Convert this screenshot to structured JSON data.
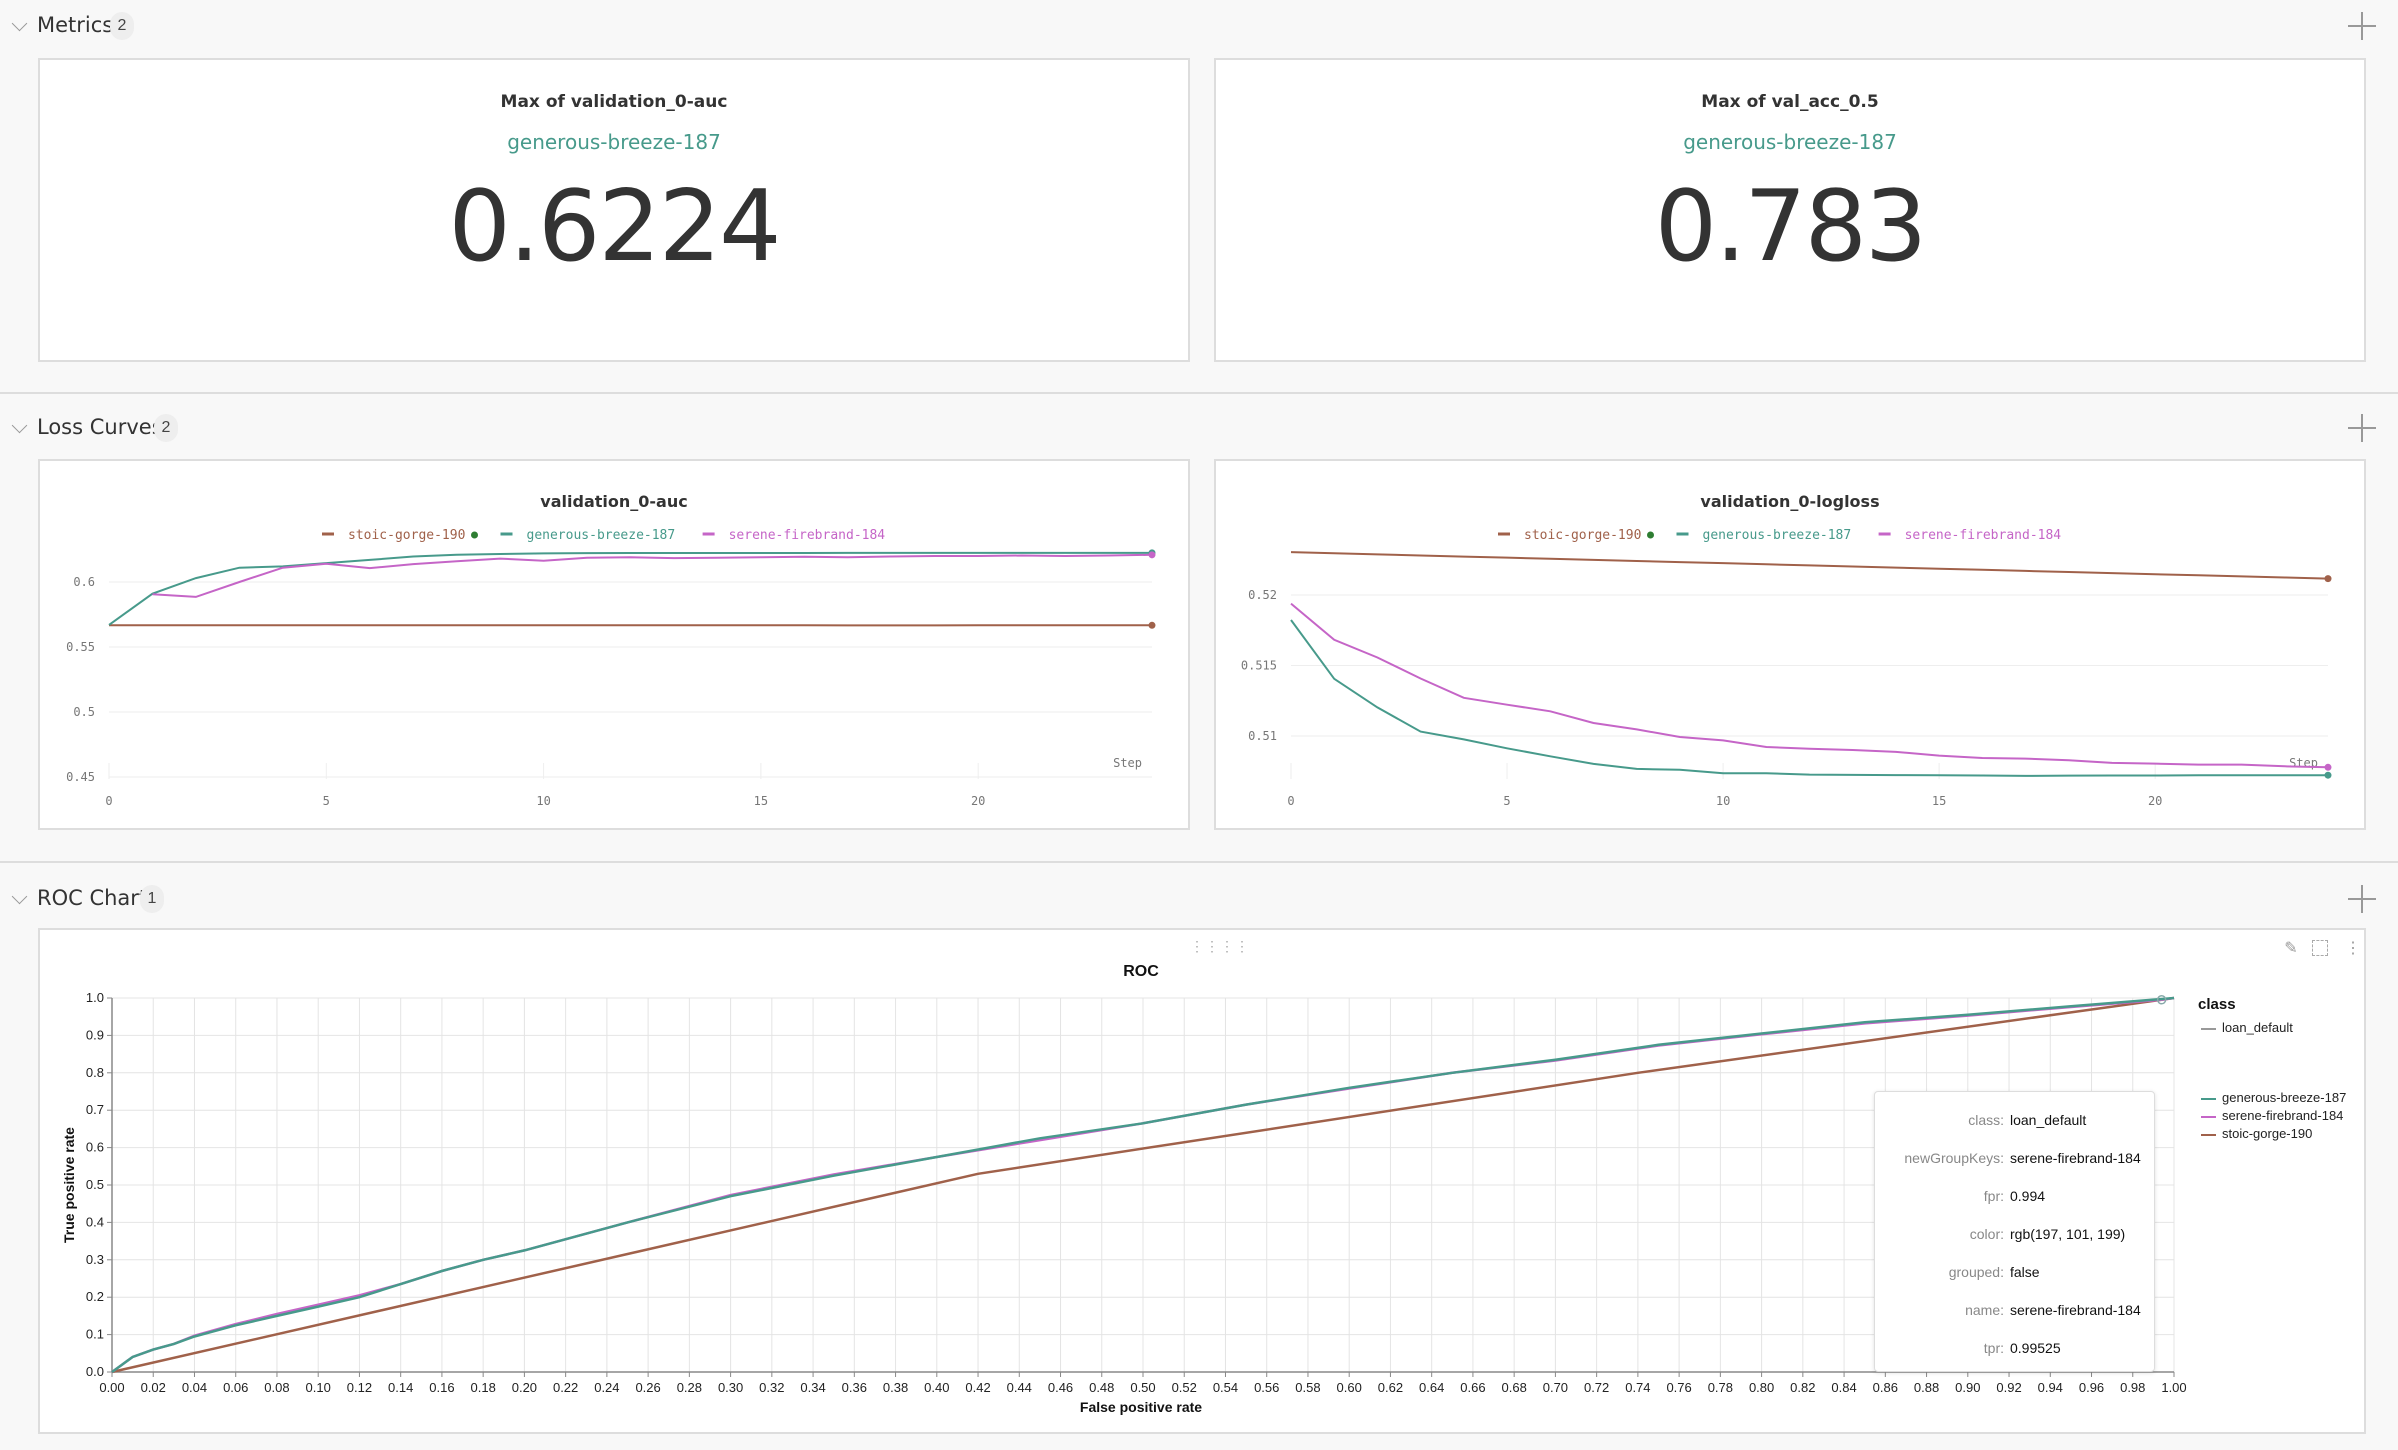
{
  "colors": {
    "generous-breeze-187": "#479a8b",
    "serene-firebrand-184": "#c565c7",
    "stoic-gorge-190": "#a0614a",
    "accent_dot": "#2e7d32",
    "loan_default": "#999999"
  },
  "sections": {
    "metrics": {
      "title": "Metrics",
      "count": "2"
    },
    "loss": {
      "title": "Loss Curves",
      "count": "2"
    },
    "roc": {
      "title": "ROC Chart",
      "count": "1"
    }
  },
  "metrics": [
    {
      "title": "Max of validation_0-auc",
      "run": "generous-breeze-187",
      "value": "0.6224"
    },
    {
      "title": "Max of val_acc_0.5",
      "run": "generous-breeze-187",
      "value": "0.783"
    }
  ],
  "chart_data": [
    {
      "type": "line",
      "title": "validation_0-auc",
      "xlabel": "Step",
      "ylabel": "",
      "x_ticks": [
        "0",
        "5",
        "10",
        "15",
        "20"
      ],
      "y_ticks": [
        "0.45",
        "0.5",
        "0.55",
        "0.6"
      ],
      "ylim": [
        0.45,
        0.6224
      ],
      "xlim": [
        0,
        24
      ],
      "grid": true,
      "legend": "top",
      "x": [
        0,
        1,
        2,
        3,
        4,
        5,
        6,
        7,
        8,
        9,
        10,
        11,
        12,
        13,
        14,
        15,
        16,
        17,
        18,
        19,
        20,
        21,
        22,
        23,
        24
      ],
      "series": [
        {
          "name": "stoic-gorge-190",
          "values": [
            0.5668,
            0.5668,
            0.5668,
            0.5668,
            0.5668,
            0.5668,
            0.5668,
            0.5668,
            0.5668,
            0.5668,
            0.5668,
            0.5668,
            0.5668,
            0.5668,
            0.5668,
            0.5668,
            0.5668,
            0.5666,
            0.5666,
            0.5666,
            0.5667,
            0.5667,
            0.5667,
            0.5667,
            0.5667
          ]
        },
        {
          "name": "generous-breeze-187",
          "values": [
            0.567,
            0.591,
            0.603,
            0.611,
            0.612,
            0.6145,
            0.617,
            0.6196,
            0.621,
            0.6215,
            0.622,
            0.6222,
            0.6223,
            0.6223,
            0.6223,
            0.6223,
            0.6223,
            0.6224,
            0.6224,
            0.6224,
            0.6224,
            0.6224,
            0.6224,
            0.6224,
            0.6224
          ]
        },
        {
          "name": "serene-firebrand-184",
          "values": [
            null,
            0.5906,
            0.5885,
            0.6,
            0.611,
            0.614,
            0.6107,
            0.6138,
            0.616,
            0.618,
            0.6163,
            0.6186,
            0.619,
            0.6184,
            0.6186,
            0.619,
            0.6194,
            0.619,
            0.6196,
            0.62,
            0.62,
            0.6204,
            0.62,
            0.6204,
            0.6209
          ]
        }
      ]
    },
    {
      "type": "line",
      "title": "validation_0-logloss",
      "xlabel": "Step",
      "ylabel": "",
      "x_ticks": [
        "0",
        "5",
        "10",
        "15",
        "20"
      ],
      "y_ticks": [
        "0.51",
        "0.515",
        "0.52"
      ],
      "ylim": [
        0.5072,
        0.5231
      ],
      "xlim": [
        0,
        24
      ],
      "grid": true,
      "legend": "top",
      "x": [
        0,
        1,
        2,
        3,
        4,
        5,
        6,
        7,
        8,
        9,
        10,
        11,
        12,
        13,
        14,
        15,
        16,
        17,
        18,
        19,
        20,
        21,
        22,
        23,
        24
      ],
      "series": [
        {
          "name": "stoic-gorge-190",
          "values": [
            0.52304,
            0.52296,
            0.52288,
            0.5228,
            0.52272,
            0.52265,
            0.52257,
            0.52249,
            0.52241,
            0.52233,
            0.52226,
            0.52218,
            0.5221,
            0.52202,
            0.52194,
            0.52186,
            0.52179,
            0.52171,
            0.52163,
            0.52155,
            0.52147,
            0.5214,
            0.52132,
            0.52124,
            0.52116
          ]
        },
        {
          "name": "generous-breeze-187",
          "values": [
            0.51823,
            0.51406,
            0.51203,
            0.51031,
            0.50976,
            0.50913,
            0.50856,
            0.50802,
            0.50767,
            0.5076,
            0.50736,
            0.50736,
            0.50726,
            0.50724,
            0.50723,
            0.50722,
            0.5072,
            0.50717,
            0.50719,
            0.5072,
            0.5072,
            0.50721,
            0.50721,
            0.50722,
            0.50722
          ]
        },
        {
          "name": "serene-firebrand-184",
          "values": [
            0.51939,
            0.51682,
            0.51557,
            0.51408,
            0.51271,
            0.51222,
            0.51175,
            0.51092,
            0.51047,
            0.50993,
            0.50969,
            0.50922,
            0.5091,
            0.50901,
            0.50887,
            0.50861,
            0.50844,
            0.5084,
            0.50828,
            0.50809,
            0.50804,
            0.50797,
            0.50797,
            0.50785,
            0.50778
          ]
        }
      ]
    },
    {
      "type": "line",
      "title": "ROC",
      "xlabel": "False positive rate",
      "ylabel": "True positive rate",
      "xlim": [
        0,
        1
      ],
      "ylim": [
        0,
        1
      ],
      "x_ticks": [
        "0.00",
        "0.02",
        "0.04",
        "0.06",
        "0.08",
        "0.10",
        "0.12",
        "0.14",
        "0.16",
        "0.18",
        "0.20",
        "0.22",
        "0.24",
        "0.26",
        "0.28",
        "0.30",
        "0.32",
        "0.34",
        "0.36",
        "0.38",
        "0.40",
        "0.42",
        "0.44",
        "0.46",
        "0.48",
        "0.50",
        "0.52",
        "0.54",
        "0.56",
        "0.58",
        "0.60",
        "0.62",
        "0.64",
        "0.66",
        "0.68",
        "0.70",
        "0.72",
        "0.74",
        "0.76",
        "0.78",
        "0.80",
        "0.82",
        "0.84",
        "0.86",
        "0.88",
        "0.90",
        "0.92",
        "0.94",
        "0.96",
        "0.98",
        "1.00"
      ],
      "y_ticks": [
        "0.0",
        "0.1",
        "0.2",
        "0.3",
        "0.4",
        "0.5",
        "0.6",
        "0.7",
        "0.8",
        "0.9",
        "1.0"
      ],
      "grid": true,
      "legend": "right",
      "legend_title": "class",
      "legend_class": "loan_default",
      "series": [
        {
          "name": "generous-breeze-187",
          "points": [
            [
              0,
              0
            ],
            [
              0.005,
              0.02
            ],
            [
              0.01,
              0.04
            ],
            [
              0.02,
              0.06
            ],
            [
              0.03,
              0.075
            ],
            [
              0.04,
              0.095
            ],
            [
              0.06,
              0.125
            ],
            [
              0.08,
              0.15
            ],
            [
              0.1,
              0.175
            ],
            [
              0.12,
              0.2
            ],
            [
              0.14,
              0.235
            ],
            [
              0.16,
              0.27
            ],
            [
              0.18,
              0.3
            ],
            [
              0.2,
              0.325
            ],
            [
              0.25,
              0.4
            ],
            [
              0.3,
              0.47
            ],
            [
              0.35,
              0.525
            ],
            [
              0.4,
              0.575
            ],
            [
              0.45,
              0.625
            ],
            [
              0.5,
              0.665
            ],
            [
              0.55,
              0.715
            ],
            [
              0.6,
              0.76
            ],
            [
              0.65,
              0.8
            ],
            [
              0.7,
              0.835
            ],
            [
              0.75,
              0.875
            ],
            [
              0.8,
              0.905
            ],
            [
              0.85,
              0.935
            ],
            [
              0.9,
              0.955
            ],
            [
              0.95,
              0.978
            ],
            [
              1.0,
              1.0
            ]
          ]
        },
        {
          "name": "serene-firebrand-184",
          "points": [
            [
              0,
              0
            ],
            [
              0.005,
              0.02
            ],
            [
              0.01,
              0.04
            ],
            [
              0.02,
              0.06
            ],
            [
              0.03,
              0.075
            ],
            [
              0.04,
              0.097
            ],
            [
              0.06,
              0.128
            ],
            [
              0.08,
              0.155
            ],
            [
              0.1,
              0.18
            ],
            [
              0.12,
              0.205
            ],
            [
              0.14,
              0.235
            ],
            [
              0.16,
              0.27
            ],
            [
              0.18,
              0.3
            ],
            [
              0.2,
              0.325
            ],
            [
              0.25,
              0.4
            ],
            [
              0.3,
              0.473
            ],
            [
              0.35,
              0.528
            ],
            [
              0.4,
              0.575
            ],
            [
              0.45,
              0.62
            ],
            [
              0.5,
              0.665
            ],
            [
              0.55,
              0.715
            ],
            [
              0.6,
              0.758
            ],
            [
              0.65,
              0.8
            ],
            [
              0.7,
              0.833
            ],
            [
              0.75,
              0.873
            ],
            [
              0.8,
              0.903
            ],
            [
              0.85,
              0.932
            ],
            [
              0.9,
              0.953
            ],
            [
              0.95,
              0.976
            ],
            [
              0.994,
              0.99525
            ],
            [
              1.0,
              1.0
            ]
          ]
        },
        {
          "name": "stoic-gorge-190",
          "points": [
            [
              0,
              0
            ],
            [
              0.42,
              0.53
            ],
            [
              0.74,
              0.8
            ],
            [
              1.0,
              1.0
            ]
          ]
        }
      ],
      "tooltip": [
        {
          "key": "class:",
          "value": "loan_default"
        },
        {
          "key": "newGroupKeys:",
          "value": "serene-firebrand-184"
        },
        {
          "key": "fpr:",
          "value": "0.994"
        },
        {
          "key": "color:",
          "value": "rgb(197, 101, 199)"
        },
        {
          "key": "grouped:",
          "value": "false"
        },
        {
          "key": "name:",
          "value": "serene-firebrand-184"
        },
        {
          "key": "tpr:",
          "value": "0.99525"
        }
      ]
    }
  ],
  "icons": {
    "collapse": "chevron-down-icon",
    "add": "plus-icon",
    "edit": "pencil-icon",
    "fullscreen": "expand-icon",
    "menu": "more-vertical-icon",
    "drag": "drag-handle-icon"
  }
}
